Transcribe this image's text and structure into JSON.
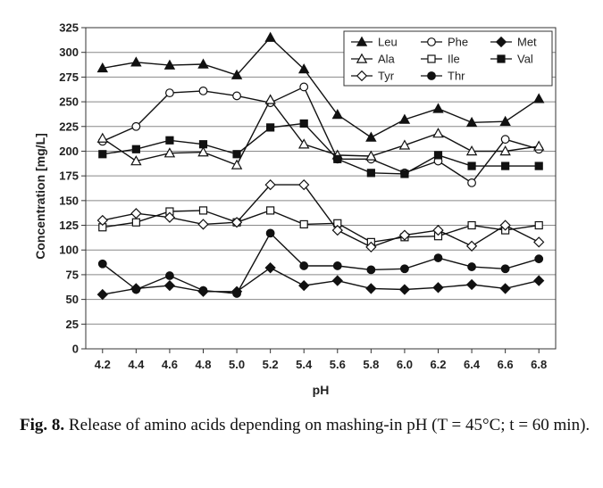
{
  "chart_data": {
    "type": "line",
    "title": "",
    "xlabel": "pH",
    "ylabel": "Concentration [mg/L]",
    "x": [
      4.2,
      4.4,
      4.6,
      4.8,
      5.0,
      5.2,
      5.4,
      5.6,
      5.8,
      6.0,
      6.2,
      6.4,
      6.6,
      6.8
    ],
    "x_tick_labels": [
      "4.2",
      "4.4",
      "4.6",
      "4.8",
      "5.0",
      "5.2",
      "5.4",
      "5.6",
      "5.8",
      "6.0",
      "6.2",
      "6.4",
      "6.6",
      "6.8"
    ],
    "ylim": [
      0,
      325
    ],
    "y_ticks": [
      0,
      25,
      50,
      75,
      100,
      125,
      150,
      175,
      200,
      225,
      250,
      275,
      300,
      325
    ],
    "grid": "horizontal",
    "legend_position": "top-right",
    "series": [
      {
        "name": "Leu",
        "marker": "triangle-filled",
        "values": [
          284,
          290,
          287,
          288,
          277,
          315,
          283,
          237,
          214,
          232,
          243,
          229,
          230,
          253
        ]
      },
      {
        "name": "Phe",
        "marker": "circle-open",
        "values": [
          210,
          225,
          259,
          261,
          256,
          249,
          265,
          192,
          192,
          178,
          190,
          168,
          212,
          202
        ]
      },
      {
        "name": "Met",
        "marker": "diamond-filled",
        "values": [
          55,
          61,
          64,
          58,
          58,
          82,
          64,
          69,
          61,
          60,
          62,
          65,
          61,
          69
        ]
      },
      {
        "name": "Ala",
        "marker": "triangle-open",
        "values": [
          213,
          190,
          198,
          199,
          186,
          252,
          207,
          196,
          195,
          206,
          218,
          200,
          200,
          205
        ]
      },
      {
        "name": "Ile",
        "marker": "square-open",
        "values": [
          123,
          128,
          139,
          140,
          128,
          140,
          126,
          127,
          108,
          113,
          114,
          125,
          120,
          125
        ]
      },
      {
        "name": "Val",
        "marker": "square-filled",
        "values": [
          197,
          202,
          211,
          207,
          197,
          224,
          228,
          192,
          178,
          177,
          196,
          185,
          185,
          185
        ]
      },
      {
        "name": "Tyr",
        "marker": "diamond-open",
        "values": [
          130,
          137,
          133,
          126,
          128,
          166,
          166,
          120,
          103,
          115,
          120,
          104,
          125,
          108
        ]
      },
      {
        "name": "Thr",
        "marker": "circle-filled",
        "values": [
          86,
          60,
          74,
          59,
          56,
          117,
          84,
          84,
          80,
          81,
          92,
          83,
          81,
          91
        ]
      }
    ]
  },
  "caption": {
    "label": "Fig. 8.",
    "text": " Release of amino acids depending on mashing-in pH (T = 45°C; t = 60 min)."
  }
}
